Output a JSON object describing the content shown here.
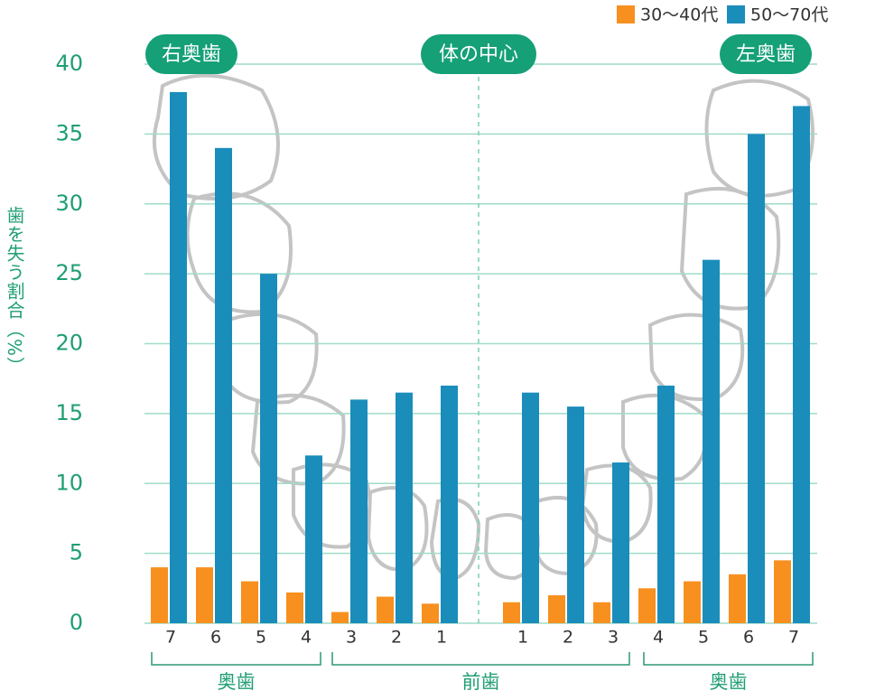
{
  "chart_data": {
    "type": "bar",
    "y_label": "歯を失う割合（%）",
    "categories": [
      "7",
      "6",
      "5",
      "4",
      "3",
      "2",
      "1",
      "1",
      "2",
      "3",
      "4",
      "5",
      "6",
      "7"
    ],
    "series": [
      {
        "name": "30〜40代",
        "color": "#f7901e",
        "values": [
          4,
          4,
          3,
          2.2,
          0.8,
          1.9,
          1.4,
          1.5,
          2,
          1.5,
          2.5,
          3,
          3.5,
          4.5
        ]
      },
      {
        "name": "50〜70代",
        "color": "#1a8dbb",
        "values": [
          38,
          34,
          25,
          12,
          16,
          16.5,
          17,
          16.5,
          15.5,
          11.5,
          17,
          26,
          35,
          37
        ]
      }
    ],
    "annotations": [
      "右奥歯",
      "体の中心",
      "左奥歯"
    ],
    "x_groups": [
      "奥歯",
      "前歯",
      "奥歯"
    ],
    "ylim": [
      0,
      40
    ],
    "yticks": [
      0,
      5,
      10,
      15,
      20,
      25,
      30,
      35,
      40
    ],
    "grid": true,
    "legend": "top-right"
  }
}
